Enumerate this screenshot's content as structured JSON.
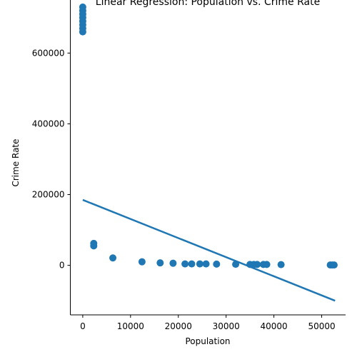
{
  "chart_data": {
    "type": "scatter",
    "title": "Linear Regression: Population vs. Crime Rate",
    "xlabel": "Population",
    "ylabel": "Crime Rate",
    "xlim": [
      -2600,
      55000
    ],
    "ylim": [
      -140000,
      750000
    ],
    "x_ticks": [
      0,
      10000,
      20000,
      30000,
      40000,
      50000
    ],
    "y_ticks": [
      0,
      200000,
      400000,
      600000
    ],
    "grid": false,
    "legend": "none",
    "colors": {
      "points": "#1f77b4",
      "line": "#1f77b4"
    },
    "points": [
      {
        "x": 0,
        "y": 660000
      },
      {
        "x": 0,
        "y": 670000
      },
      {
        "x": 0,
        "y": 680000
      },
      {
        "x": 0,
        "y": 690000
      },
      {
        "x": 0,
        "y": 700000
      },
      {
        "x": 0,
        "y": 710000
      },
      {
        "x": 0,
        "y": 720000
      },
      {
        "x": 0,
        "y": 730000
      },
      {
        "x": 2300,
        "y": 55000
      },
      {
        "x": 2300,
        "y": 62000
      },
      {
        "x": 6300,
        "y": 21000
      },
      {
        "x": 12400,
        "y": 10000
      },
      {
        "x": 16200,
        "y": 7000
      },
      {
        "x": 18900,
        "y": 6000
      },
      {
        "x": 21400,
        "y": 4000
      },
      {
        "x": 22800,
        "y": 4000
      },
      {
        "x": 24500,
        "y": 4000
      },
      {
        "x": 25800,
        "y": 4000
      },
      {
        "x": 28000,
        "y": 3500
      },
      {
        "x": 32000,
        "y": 3000
      },
      {
        "x": 35000,
        "y": 2500
      },
      {
        "x": 35800,
        "y": 2500
      },
      {
        "x": 36500,
        "y": 2500
      },
      {
        "x": 37800,
        "y": 2500
      },
      {
        "x": 38500,
        "y": 2500
      },
      {
        "x": 41500,
        "y": 2000
      },
      {
        "x": 51800,
        "y": 1000
      },
      {
        "x": 52200,
        "y": 1000
      },
      {
        "x": 52600,
        "y": 1000
      }
    ],
    "regression": {
      "x": [
        0,
        52800
      ],
      "y": [
        185000,
        -100000
      ]
    }
  }
}
